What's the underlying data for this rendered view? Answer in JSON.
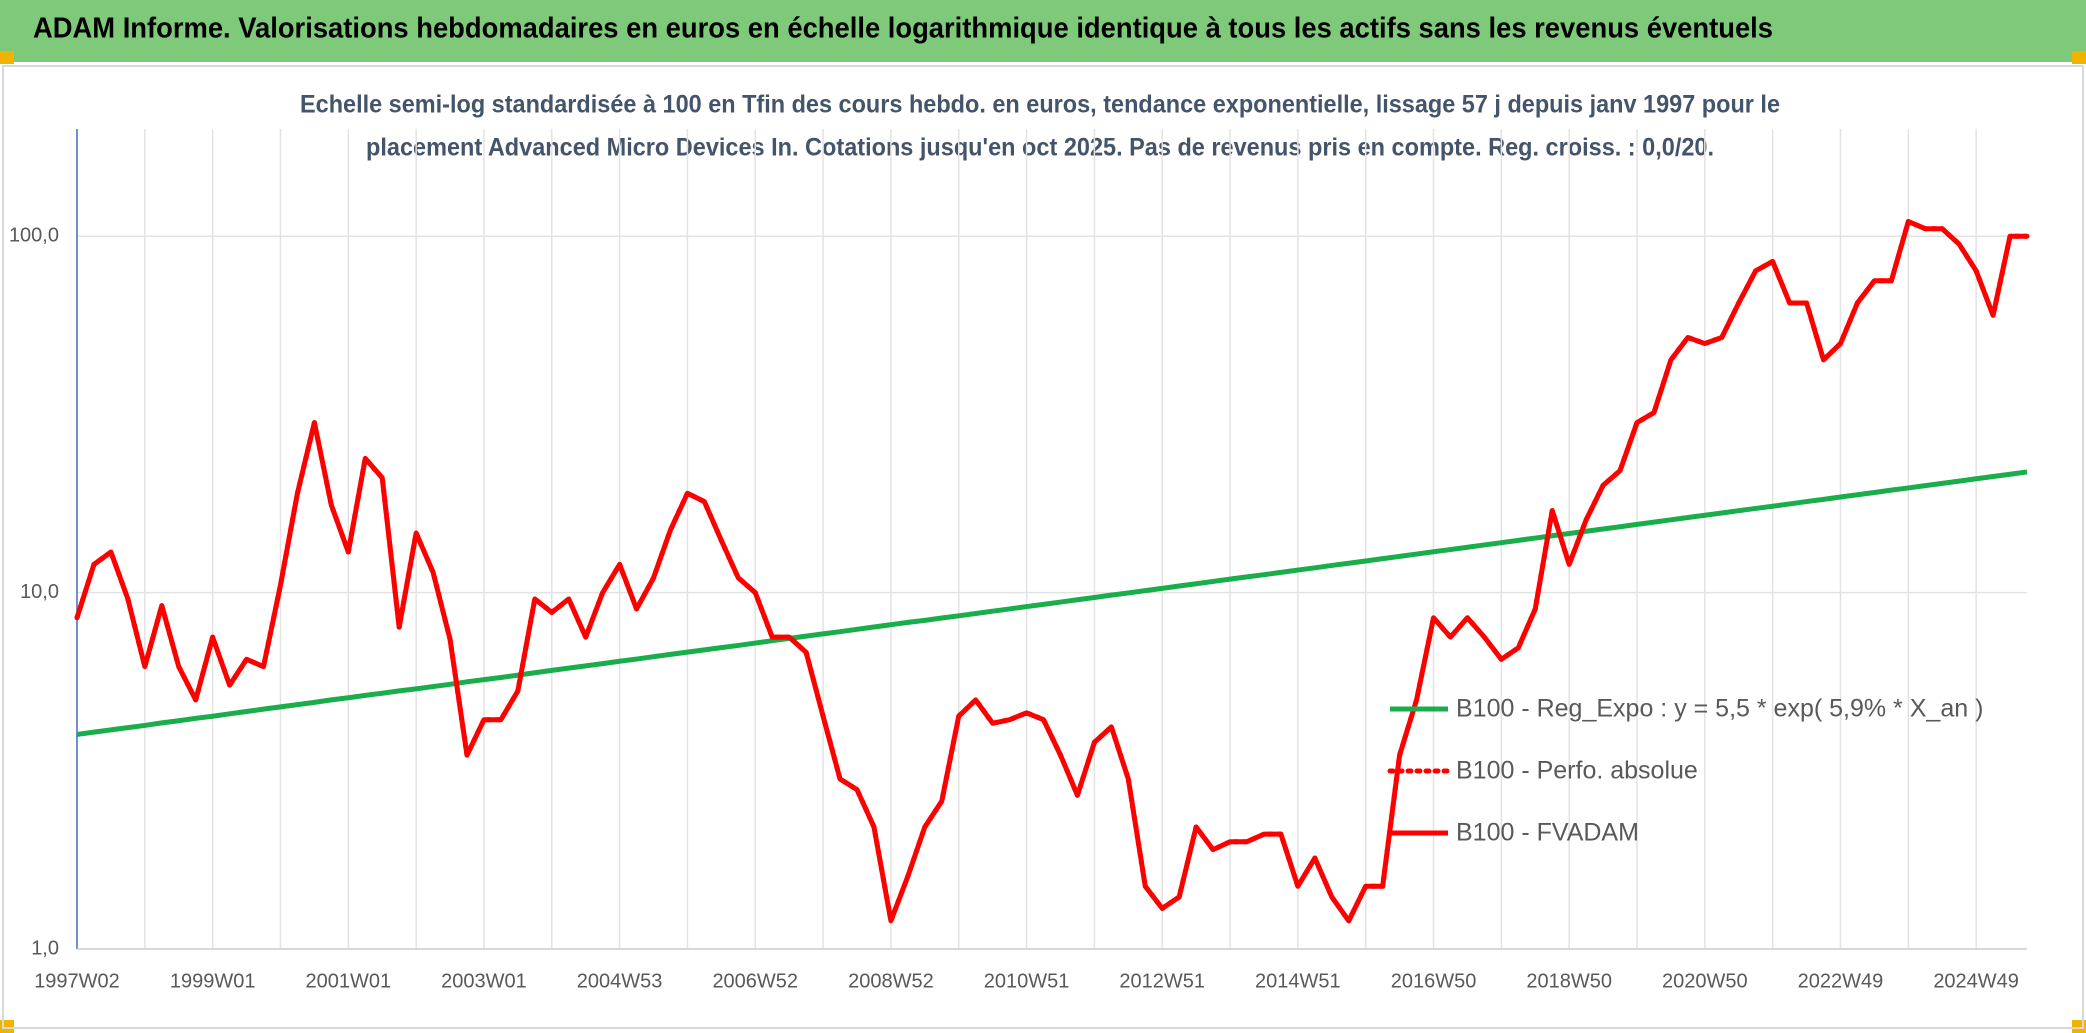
{
  "chart_data": {
    "type": "line",
    "title": "ADAM Informe. Valorisations hebdomadaires en euros en échelle logarithmique identique à tous les actifs sans les revenus éventuels",
    "subtitle": [
      "Echelle semi-log standardisée à 100 en Tfin des cours hebdo. en euros, tendance exponentielle, lissage 57 j depuis janv 1997 pour le",
      "placement Advanced Micro Devices In. Cotations jusqu'en oct 2025. Pas de revenus pris en compte. Reg. croiss. : 0,0/20."
    ],
    "categories": [
      "1997W02",
      null,
      null,
      null,
      null,
      null,
      null,
      null,
      "1999W01",
      null,
      null,
      null,
      null,
      null,
      null,
      null,
      "2001W01",
      null,
      null,
      null,
      null,
      null,
      null,
      null,
      "2003W01",
      null,
      null,
      null,
      null,
      null,
      null,
      null,
      "2004W53",
      null,
      null,
      null,
      null,
      null,
      null,
      null,
      "2006W52",
      null,
      null,
      null,
      null,
      null,
      null,
      null,
      "2008W52",
      null,
      null,
      null,
      null,
      null,
      null,
      null,
      "2010W51",
      null,
      null,
      null,
      null,
      null,
      null,
      null,
      "2012W51",
      null,
      null,
      null,
      null,
      null,
      null,
      null,
      "2014W51",
      null,
      null,
      null,
      null,
      null,
      null,
      null,
      "2016W50",
      null,
      null,
      null,
      null,
      null,
      null,
      null,
      "2018W50",
      null,
      null,
      null,
      null,
      null,
      null,
      null,
      "2020W50",
      null,
      null,
      null,
      null,
      null,
      null,
      null,
      "2022W49",
      null,
      null,
      null,
      null,
      null,
      null,
      null,
      "2024W49",
      null,
      null,
      null
    ],
    "series": [
      {
        "name": "B100 - Reg_Expo : y = 5,5 * exp( 5,9% *  X_an )",
        "color": "#1aad4b",
        "dash": "solid",
        "values": [
          4.0,
          4.06,
          4.12,
          4.18,
          4.24,
          4.31,
          4.37,
          4.44,
          4.5,
          4.57,
          4.64,
          4.71,
          4.78,
          4.85,
          4.92,
          5.0,
          5.07,
          5.15,
          5.22,
          5.3,
          5.37,
          5.45,
          5.53,
          5.62,
          5.7,
          5.78,
          5.87,
          5.96,
          6.05,
          6.14,
          6.23,
          6.32,
          6.42,
          6.51,
          6.61,
          6.71,
          6.81,
          6.91,
          7.01,
          7.11,
          7.22,
          7.33,
          7.44,
          7.55,
          7.66,
          7.77,
          7.89,
          8.01,
          8.13,
          8.25,
          8.36,
          8.49,
          8.61,
          8.74,
          8.87,
          9.0,
          9.14,
          9.27,
          9.41,
          9.55,
          9.69,
          9.84,
          9.98,
          10.13,
          10.28,
          10.44,
          10.59,
          10.75,
          10.91,
          11.07,
          11.23,
          11.4,
          11.57,
          11.74,
          11.92,
          12.09,
          12.27,
          12.46,
          12.64,
          12.83,
          13.02,
          13.21,
          13.41,
          13.61,
          13.81,
          14.02,
          14.23,
          14.44,
          14.65,
          14.87,
          15.09,
          15.31,
          15.54,
          15.77,
          16.01,
          16.25,
          16.49,
          16.73,
          16.98,
          17.23,
          17.48,
          17.74,
          18.01,
          18.27,
          18.55,
          18.82,
          19.1,
          19.39,
          19.67,
          19.97,
          20.26,
          20.56,
          20.87,
          21.18,
          21.49,
          21.81
        ]
      },
      {
        "name": "B100 - Perfo. absolue",
        "color": "#ff0000",
        "dash": "dotted",
        "values": [
          8.5,
          12,
          13,
          9.6,
          6.2,
          9.2,
          6.2,
          5.0,
          7.5,
          5.5,
          6.5,
          6.2,
          10.5,
          19,
          30,
          17.6,
          13,
          23.8,
          21,
          8,
          14.7,
          11.4,
          7.4,
          3.5,
          4.4,
          4.4,
          5.3,
          9.6,
          8.8,
          9.6,
          7.5,
          10,
          12,
          9,
          11,
          15,
          19,
          18,
          14,
          11,
          10,
          7.5,
          7.5,
          6.8,
          4.5,
          3.0,
          2.8,
          2.2,
          1.2,
          1.6,
          2.2,
          2.6,
          4.5,
          5.0,
          4.3,
          4.4,
          4.6,
          4.4,
          3.5,
          2.7,
          3.8,
          4.2,
          3.0,
          1.5,
          1.3,
          1.4,
          2.2,
          1.9,
          2.0,
          2.0,
          2.1,
          2.1,
          1.5,
          1.8,
          1.4,
          1.2,
          1.5,
          1.5,
          3.5,
          5.0,
          8.5,
          7.5,
          8.5,
          7.5,
          6.5,
          7,
          9,
          17,
          12,
          16,
          20,
          22,
          30,
          32,
          45,
          52,
          50,
          52,
          65,
          80,
          85,
          65,
          65,
          45,
          50,
          65,
          75,
          75,
          110,
          105,
          105,
          95,
          80,
          60,
          100,
          100
        ]
      },
      {
        "name": "B100 - FVADAM",
        "color": "#ff0000",
        "dash": "solid",
        "values": [
          8.5,
          12,
          13,
          9.6,
          6.2,
          9.2,
          6.2,
          5.0,
          7.5,
          5.5,
          6.5,
          6.2,
          10.5,
          19,
          30,
          17.6,
          13,
          23.8,
          21,
          8,
          14.7,
          11.4,
          7.4,
          3.5,
          4.4,
          4.4,
          5.3,
          9.6,
          8.8,
          9.6,
          7.5,
          10,
          12,
          9,
          11,
          15,
          19,
          18,
          14,
          11,
          10,
          7.5,
          7.5,
          6.8,
          4.5,
          3.0,
          2.8,
          2.2,
          1.2,
          1.6,
          2.2,
          2.6,
          4.5,
          5.0,
          4.3,
          4.4,
          4.6,
          4.4,
          3.5,
          2.7,
          3.8,
          4.2,
          3.0,
          1.5,
          1.3,
          1.4,
          2.2,
          1.9,
          2.0,
          2.0,
          2.1,
          2.1,
          1.5,
          1.8,
          1.4,
          1.2,
          1.5,
          1.5,
          3.5,
          5.0,
          8.5,
          7.5,
          8.5,
          7.5,
          6.5,
          7,
          9,
          17,
          12,
          16,
          20,
          22,
          30,
          32,
          45,
          52,
          50,
          52,
          65,
          80,
          85,
          65,
          65,
          45,
          50,
          65,
          75,
          75,
          110,
          105,
          105,
          95,
          80,
          60,
          100,
          100
        ]
      }
    ],
    "ylim": [
      1,
      200
    ],
    "yticks": [
      {
        "value": 1,
        "label": "1,0"
      },
      {
        "value": 10,
        "label": "10,0"
      },
      {
        "value": 100,
        "label": "100,0"
      }
    ],
    "yscale": "log",
    "grid": true,
    "legend": "right"
  }
}
